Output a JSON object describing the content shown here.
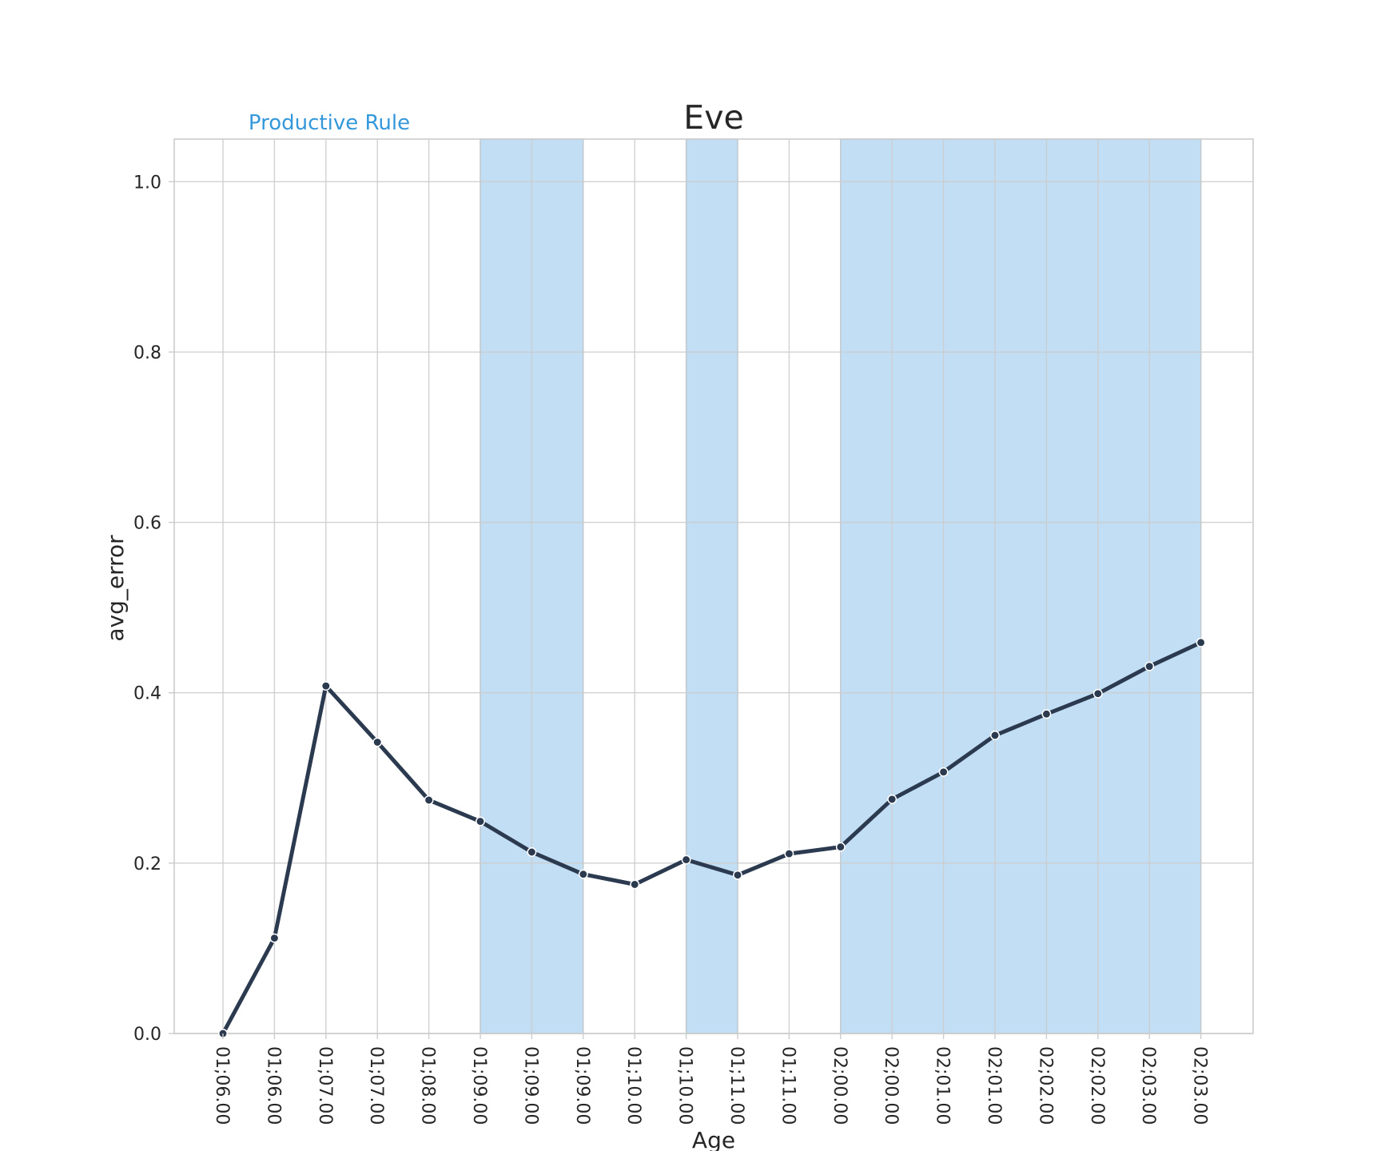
{
  "chart_data": {
    "type": "line",
    "title": "Eve",
    "xlabel": "Age",
    "ylabel": "avg_error",
    "ylim": [
      0,
      1.05
    ],
    "yticks": [
      0.0,
      0.2,
      0.4,
      0.6,
      0.8,
      1.0
    ],
    "ytick_labels": [
      "0.0",
      "0.2",
      "0.4",
      "0.6",
      "0.8",
      "1.0"
    ],
    "grid": true,
    "categories": [
      "01;06.00",
      "01;06.00",
      "01;07.00",
      "01;07.00",
      "01;08.00",
      "01;09.00",
      "01;09.00",
      "01;09.00",
      "01;10.00",
      "01;10.00",
      "01;11.00",
      "01;11.00",
      "02;00.00",
      "02;00.00",
      "02;01.00",
      "02;01.00",
      "02;02.00",
      "02;02.00",
      "02;03.00",
      "02;03.00"
    ],
    "series": [
      {
        "values": [
          0.0,
          0.112,
          0.408,
          0.342,
          0.274,
          0.249,
          0.213,
          0.187,
          0.175,
          0.204,
          0.186,
          0.211,
          0.219,
          0.275,
          0.307,
          0.35,
          0.375,
          0.399,
          0.431,
          0.459
        ],
        "color": "#2b3a4f"
      }
    ],
    "shaded_regions": [
      {
        "start_index": 5,
        "end_index": 7
      },
      {
        "start_index": 9,
        "end_index": 10
      },
      {
        "start_index": 12,
        "end_index": 19
      }
    ],
    "annotation": "Productive Rule",
    "colors": {
      "shade": "#9fcdee",
      "annotation": "#3498db",
      "grid": "#cccccc",
      "line": "#2b3a4f"
    }
  }
}
